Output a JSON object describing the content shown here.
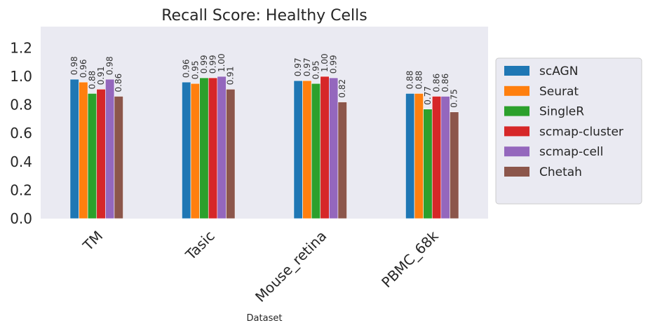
{
  "chart_data": {
    "type": "bar",
    "title": "Recall Score: Healthy Cells",
    "xlabel": "Dataset",
    "ylabel": "",
    "ylim": [
      0,
      1.35
    ],
    "yticks": [
      "0.0",
      "0.2",
      "0.4",
      "0.6",
      "0.8",
      "1.0",
      "1.2"
    ],
    "categories": [
      "TM",
      "Tasic",
      "Mouse_retina",
      "PBMC_68k"
    ],
    "grid": false,
    "legend_position": "right",
    "series": [
      {
        "name": "scAGN",
        "color": "#1f77b4",
        "values": [
          0.98,
          0.96,
          0.97,
          0.88
        ],
        "labels": [
          "0.98",
          "0.96",
          "0.97",
          "0.88"
        ]
      },
      {
        "name": "Seurat",
        "color": "#ff7f0e",
        "values": [
          0.96,
          0.95,
          0.97,
          0.88
        ],
        "labels": [
          "0.96",
          "0.95",
          "0.97",
          "0.88"
        ]
      },
      {
        "name": "SingleR",
        "color": "#2ca02c",
        "values": [
          0.88,
          0.99,
          0.95,
          0.77
        ],
        "labels": [
          "0.88",
          "0.99",
          "0.95",
          "0.77"
        ]
      },
      {
        "name": "scmap-cluster",
        "color": "#d62728",
        "values": [
          0.91,
          0.99,
          1.0,
          0.86
        ],
        "labels": [
          "0.91",
          "0.99",
          "1.00",
          "0.86"
        ]
      },
      {
        "name": "scmap-cell",
        "color": "#9467bd",
        "values": [
          0.98,
          1.0,
          0.99,
          0.86
        ],
        "labels": [
          "0.98",
          "1.00",
          "0.99",
          "0.86"
        ]
      },
      {
        "name": "Chetah",
        "color": "#8c564b",
        "values": [
          0.86,
          0.91,
          0.82,
          0.75
        ],
        "labels": [
          "0.86",
          "0.91",
          "0.82",
          "0.75"
        ]
      }
    ],
    "plot_background": "#eaeaf2"
  }
}
